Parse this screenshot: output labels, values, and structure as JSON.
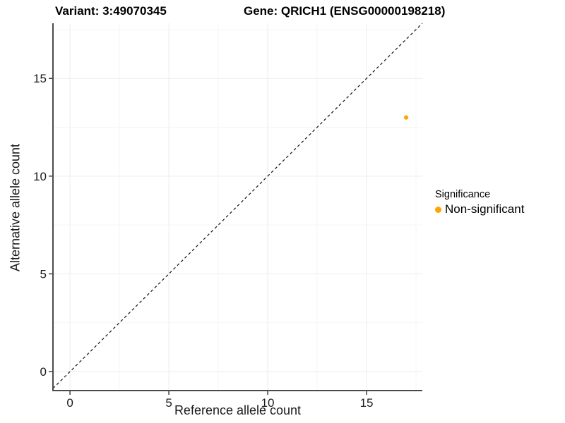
{
  "header": {
    "title_variant": "Variant: 3:49070345",
    "title_gene": "Gene: QRICH1 (ENSG00000198218)"
  },
  "chart_data": {
    "type": "scatter",
    "xlabel": "Reference allele count",
    "ylabel": "Alternative allele count",
    "x_ticks": [
      0,
      5,
      10,
      15
    ],
    "y_ticks": [
      0,
      5,
      10,
      15
    ],
    "x_minor_ticks": [
      2.5,
      7.5,
      12.5,
      17.5
    ],
    "y_minor_ticks": [
      2.5,
      7.5,
      12.5,
      17.5
    ],
    "xlim": [
      -0.86,
      17.82
    ],
    "ylim": [
      -0.97,
      17.82
    ],
    "grid": "major and minor, light gray, on white panel",
    "identity_line": {
      "type": "dashed",
      "color": "#111111",
      "from": "bottom-left",
      "to": "top-right",
      "slope": 1,
      "intercept": 0
    },
    "series": [
      {
        "name": "Non-significant",
        "color": "#FFA500",
        "points": [
          {
            "x": 17,
            "y": 13
          }
        ]
      }
    ],
    "legend": {
      "title": "Significance",
      "position": "right",
      "items": [
        {
          "label": "Non-significant",
          "color": "#FFA500"
        }
      ]
    },
    "style_colors": {
      "axis_line": "#4a4a4a",
      "tick_mark": "#333333",
      "grid_major": "#ececec",
      "grid_minor": "#f5f5f5",
      "text": "#1a1a1a"
    }
  }
}
